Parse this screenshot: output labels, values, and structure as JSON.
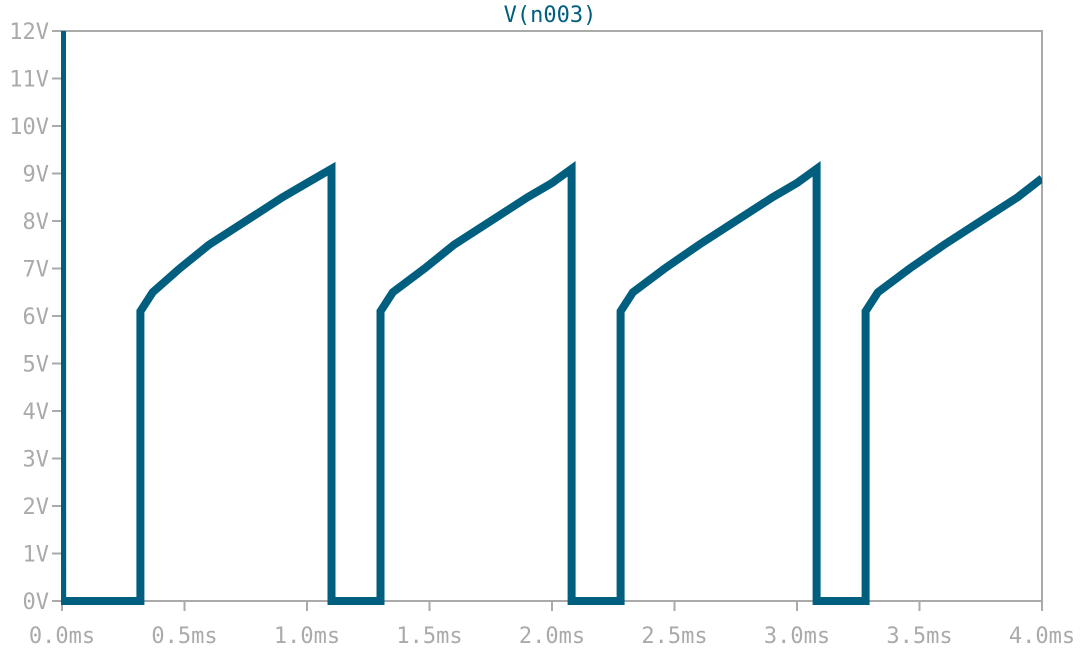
{
  "chart_data": {
    "type": "line",
    "title": "V(n003)",
    "xlabel": "",
    "ylabel": "",
    "xlim": [
      0,
      4.0
    ],
    "ylim": [
      0,
      12
    ],
    "x_ticks": [
      "0.0ms",
      "0.5ms",
      "1.0ms",
      "1.5ms",
      "2.0ms",
      "2.5ms",
      "3.0ms",
      "3.5ms",
      "4.0ms"
    ],
    "y_ticks": [
      "0V",
      "1V",
      "2V",
      "3V",
      "4V",
      "5V",
      "6V",
      "7V",
      "8V",
      "9V",
      "10V",
      "11V",
      "12V"
    ],
    "grid": false,
    "series": [
      {
        "name": "V(n003)",
        "color": "#005f7f",
        "x": [
          0,
          0,
          0.001,
          0.32,
          0.32,
          0.37,
          0.48,
          0.6,
          0.75,
          0.9,
          1.0,
          1.1,
          1.1,
          1.3,
          1.3,
          1.35,
          1.48,
          1.6,
          1.75,
          1.9,
          2.0,
          2.08,
          2.08,
          2.28,
          2.28,
          2.33,
          2.46,
          2.6,
          2.75,
          2.9,
          3.0,
          3.08,
          3.08,
          3.28,
          3.28,
          3.33,
          3.46,
          3.6,
          3.75,
          3.9,
          4.0
        ],
        "y": [
          12,
          12,
          0,
          0,
          6.1,
          6.5,
          7.0,
          7.5,
          8.0,
          8.5,
          8.8,
          9.1,
          0,
          0,
          6.1,
          6.5,
          7.0,
          7.5,
          8.0,
          8.5,
          8.8,
          9.1,
          0,
          0,
          6.1,
          6.5,
          7.0,
          7.5,
          8.0,
          8.5,
          8.8,
          9.1,
          0,
          0,
          6.1,
          6.5,
          7.0,
          7.5,
          8.0,
          8.5,
          8.9
        ]
      }
    ]
  },
  "colors": {
    "trace": "#005f7f",
    "frame": "#aaaaaa",
    "axis": "#aaaaaa",
    "background": "#ffffff"
  }
}
